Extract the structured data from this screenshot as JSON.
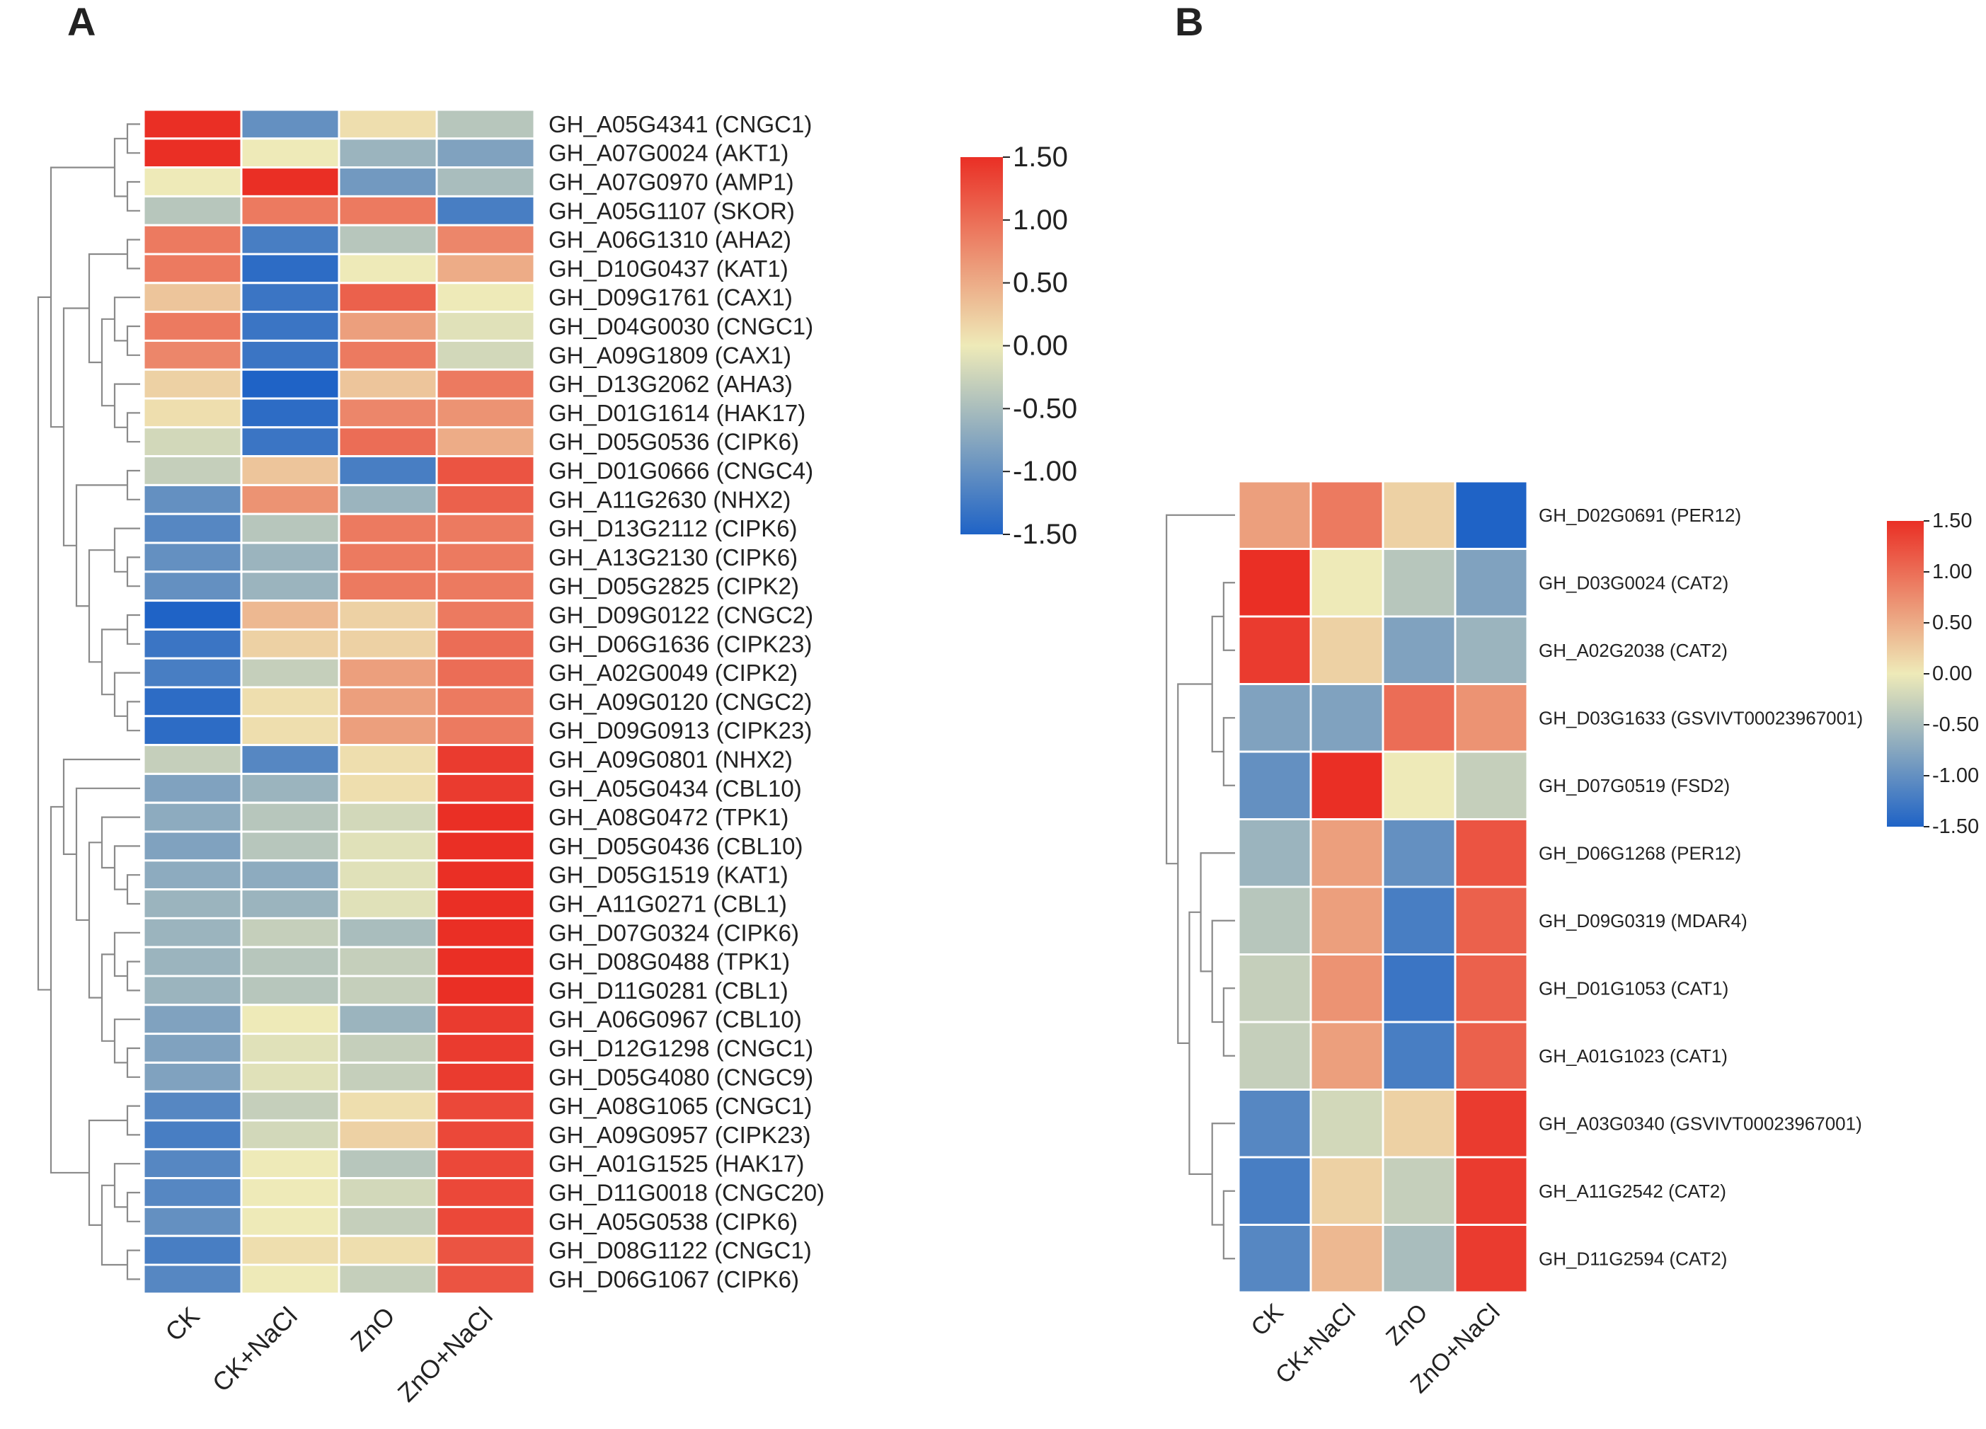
{
  "colors": {
    "low": "#1f63c6",
    "mid": "#eeeab8",
    "high": "#ea2f25",
    "dendrogram": "#8a8a8a",
    "cell_border": "#ffffff",
    "text": "#222222"
  },
  "panels": {
    "a_label": "A",
    "b_label": "B"
  },
  "chart_data": [
    {
      "type": "heatmap",
      "panel": "A",
      "columns": [
        "CK",
        "CK+NaCl",
        "ZnO",
        "ZnO+NaCl"
      ],
      "rows": [
        "GH_A05G4341 (CNGC1)",
        "GH_A07G0024 (AKT1)",
        "GH_A07G0970 (AMP1)",
        "GH_A05G1107 (SKOR)",
        "GH_A06G1310 (AHA2)",
        "GH_D10G0437 (KAT1)",
        "GH_D09G1761 (CAX1)",
        "GH_D04G0030 (CNGC1)",
        "GH_A09G1809 (CAX1)",
        "GH_D13G2062 (AHA3)",
        "GH_D01G1614 (HAK17)",
        "GH_D05G0536 (CIPK6)",
        "GH_D01G0666 (CNGC4)",
        "GH_A11G2630 (NHX2)",
        "GH_D13G2112 (CIPK6)",
        "GH_A13G2130 (CIPK6)",
        "GH_D05G2825 (CIPK2)",
        "GH_D09G0122 (CNGC2)",
        "GH_D06G1636 (CIPK23)",
        "GH_A02G0049 (CIPK2)",
        "GH_A09G0120 (CNGC2)",
        "GH_D09G0913 (CIPK23)",
        "GH_A09G0801 (NHX2)",
        "GH_A05G0434 (CBL10)",
        "GH_A08G0472 (TPK1)",
        "GH_D05G0436 (CBL10)",
        "GH_D05G1519 (KAT1)",
        "GH_A11G0271 (CBL1)",
        "GH_D07G0324 (CIPK6)",
        "GH_D08G0488 (TPK1)",
        "GH_D11G0281 (CBL1)",
        "GH_A06G0967 (CBL10)",
        "GH_D12G1298 (CNGC1)",
        "GH_D05G4080 (CNGC9)",
        "GH_A08G1065 (CNGC1)",
        "GH_A09G0957 (CIPK23)",
        "GH_A01G1525 (HAK17)",
        "GH_D11G0018 (CNGC20)",
        "GH_A05G0538 (CIPK6)",
        "GH_D08G1122 (CNGC1)",
        "GH_D06G1067 (CIPK6)"
      ],
      "values": [
        [
          1.5,
          -1.0,
          0.1,
          -0.4
        ],
        [
          1.5,
          0.0,
          -0.6,
          -0.8
        ],
        [
          0.0,
          1.5,
          -0.9,
          -0.5
        ],
        [
          -0.4,
          0.9,
          0.9,
          -1.2
        ],
        [
          0.9,
          -1.2,
          -0.4,
          0.8
        ],
        [
          0.9,
          -1.4,
          0.0,
          0.5
        ],
        [
          0.3,
          -1.3,
          1.1,
          0.0
        ],
        [
          0.9,
          -1.3,
          0.6,
          -0.1
        ],
        [
          0.8,
          -1.3,
          0.9,
          -0.2
        ],
        [
          0.2,
          -1.5,
          0.3,
          0.9
        ],
        [
          0.1,
          -1.4,
          0.8,
          0.7
        ],
        [
          -0.2,
          -1.3,
          1.0,
          0.5
        ],
        [
          -0.3,
          0.3,
          -1.2,
          1.2
        ],
        [
          -1.0,
          0.7,
          -0.6,
          1.1
        ],
        [
          -1.1,
          -0.4,
          0.9,
          0.9
        ],
        [
          -1.0,
          -0.6,
          0.9,
          0.9
        ],
        [
          -1.0,
          -0.6,
          0.9,
          0.9
        ],
        [
          -1.5,
          0.4,
          0.2,
          0.9
        ],
        [
          -1.3,
          0.2,
          0.2,
          1.0
        ],
        [
          -1.2,
          -0.3,
          0.6,
          1.0
        ],
        [
          -1.4,
          0.1,
          0.6,
          0.9
        ],
        [
          -1.4,
          0.1,
          0.6,
          0.9
        ],
        [
          -0.3,
          -1.1,
          0.1,
          1.4
        ],
        [
          -0.8,
          -0.6,
          0.1,
          1.4
        ],
        [
          -0.7,
          -0.4,
          -0.2,
          1.5
        ],
        [
          -0.8,
          -0.4,
          -0.1,
          1.5
        ],
        [
          -0.7,
          -0.7,
          -0.1,
          1.5
        ],
        [
          -0.6,
          -0.6,
          -0.1,
          1.5
        ],
        [
          -0.6,
          -0.3,
          -0.5,
          1.5
        ],
        [
          -0.6,
          -0.4,
          -0.3,
          1.5
        ],
        [
          -0.6,
          -0.4,
          -0.3,
          1.5
        ],
        [
          -0.8,
          0.0,
          -0.6,
          1.4
        ],
        [
          -0.8,
          -0.1,
          -0.3,
          1.4
        ],
        [
          -0.8,
          -0.1,
          -0.3,
          1.4
        ],
        [
          -1.1,
          -0.3,
          0.1,
          1.3
        ],
        [
          -1.2,
          -0.2,
          0.2,
          1.3
        ],
        [
          -1.1,
          0.0,
          -0.4,
          1.3
        ],
        [
          -1.1,
          0.0,
          -0.2,
          1.3
        ],
        [
          -1.0,
          0.0,
          -0.3,
          1.3
        ],
        [
          -1.2,
          0.1,
          0.1,
          1.2
        ],
        [
          -1.1,
          0.0,
          -0.3,
          1.2
        ]
      ],
      "colorbar": {
        "ticks": [
          "1.50",
          "1.00",
          "0.50",
          "0.00",
          "-0.50",
          "-1.00",
          "-1.50"
        ],
        "range": [
          -1.5,
          1.5
        ]
      }
    },
    {
      "type": "heatmap",
      "panel": "B",
      "columns": [
        "CK",
        "CK+NaCl",
        "ZnO",
        "ZnO+NaCl"
      ],
      "rows": [
        "GH_D02G0691 (PER12)",
        "GH_D03G0024 (CAT2)",
        "GH_A02G2038 (CAT2)",
        "GH_D03G1633 (GSVIVT00023967001)",
        "GH_D07G0519 (FSD2)",
        "GH_D06G1268 (PER12)",
        "GH_D09G0319 (MDAR4)",
        "GH_D01G1053 (CAT1)",
        "GH_A01G1023 (CAT1)",
        "GH_A03G0340 (GSVIVT00023967001)",
        "GH_A11G2542 (CAT2)",
        "GH_D11G2594 (CAT2)"
      ],
      "values": [
        [
          0.6,
          0.9,
          0.2,
          -1.5
        ],
        [
          1.5,
          0.0,
          -0.4,
          -0.8
        ],
        [
          1.4,
          0.2,
          -0.8,
          -0.6
        ],
        [
          -0.8,
          -0.8,
          1.0,
          0.7
        ],
        [
          -1.0,
          1.5,
          0.0,
          -0.3
        ],
        [
          -0.6,
          0.6,
          -1.0,
          1.2
        ],
        [
          -0.4,
          0.6,
          -1.2,
          1.1
        ],
        [
          -0.3,
          0.7,
          -1.3,
          1.1
        ],
        [
          -0.3,
          0.6,
          -1.2,
          1.1
        ],
        [
          -1.1,
          -0.2,
          0.2,
          1.4
        ],
        [
          -1.2,
          0.2,
          -0.3,
          1.4
        ],
        [
          -1.1,
          0.4,
          -0.5,
          1.4
        ]
      ],
      "colorbar": {
        "ticks": [
          "1.50",
          "1.00",
          "0.50",
          "0.00",
          "-0.50",
          "-1.00",
          "-1.50"
        ],
        "range": [
          -1.5,
          1.5
        ]
      }
    }
  ]
}
